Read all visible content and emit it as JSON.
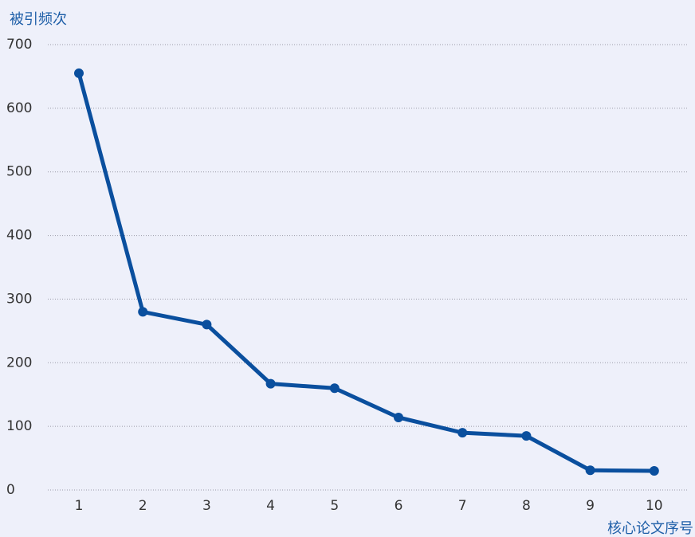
{
  "chart_data": {
    "type": "line",
    "y_label": "被引频次",
    "x_label": "核心论文序号",
    "categories": [
      "1",
      "2",
      "3",
      "4",
      "5",
      "6",
      "7",
      "8",
      "9",
      "10"
    ],
    "series": [
      {
        "name": "被引频次",
        "color": "#0a4f9e",
        "values": [
          655,
          280,
          260,
          167,
          160,
          114,
          90,
          85,
          31,
          30
        ]
      }
    ],
    "ylim": [
      0,
      700
    ],
    "yticks": [
      0,
      100,
      200,
      300,
      400,
      500,
      600,
      700
    ],
    "grid": true,
    "legend": false
  }
}
